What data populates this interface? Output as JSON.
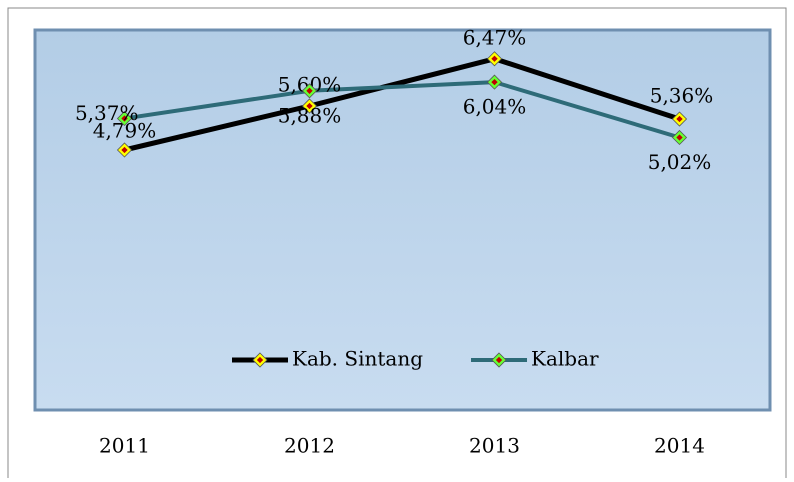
{
  "chart_data": {
    "type": "line",
    "categories": [
      "2011",
      "2012",
      "2013",
      "2014"
    ],
    "series": [
      {
        "name": "Kab. Sintang",
        "color": "#000000",
        "marker_color": "#ffff00",
        "values": [
          4.79,
          5.6,
          6.47,
          5.36
        ],
        "value_labels": [
          "4,79%",
          "5,60%",
          "6,47%",
          "5,36%"
        ]
      },
      {
        "name": "Kalbar",
        "color": "#2e6b78",
        "marker_color": "#66ff33",
        "values": [
          5.37,
          5.88,
          6.04,
          5.02
        ],
        "value_labels": [
          "5,37%",
          "5,88%",
          "6,04%",
          "5,02%"
        ]
      }
    ],
    "ylim": [
      0,
      7
    ],
    "legend": "bottom"
  }
}
